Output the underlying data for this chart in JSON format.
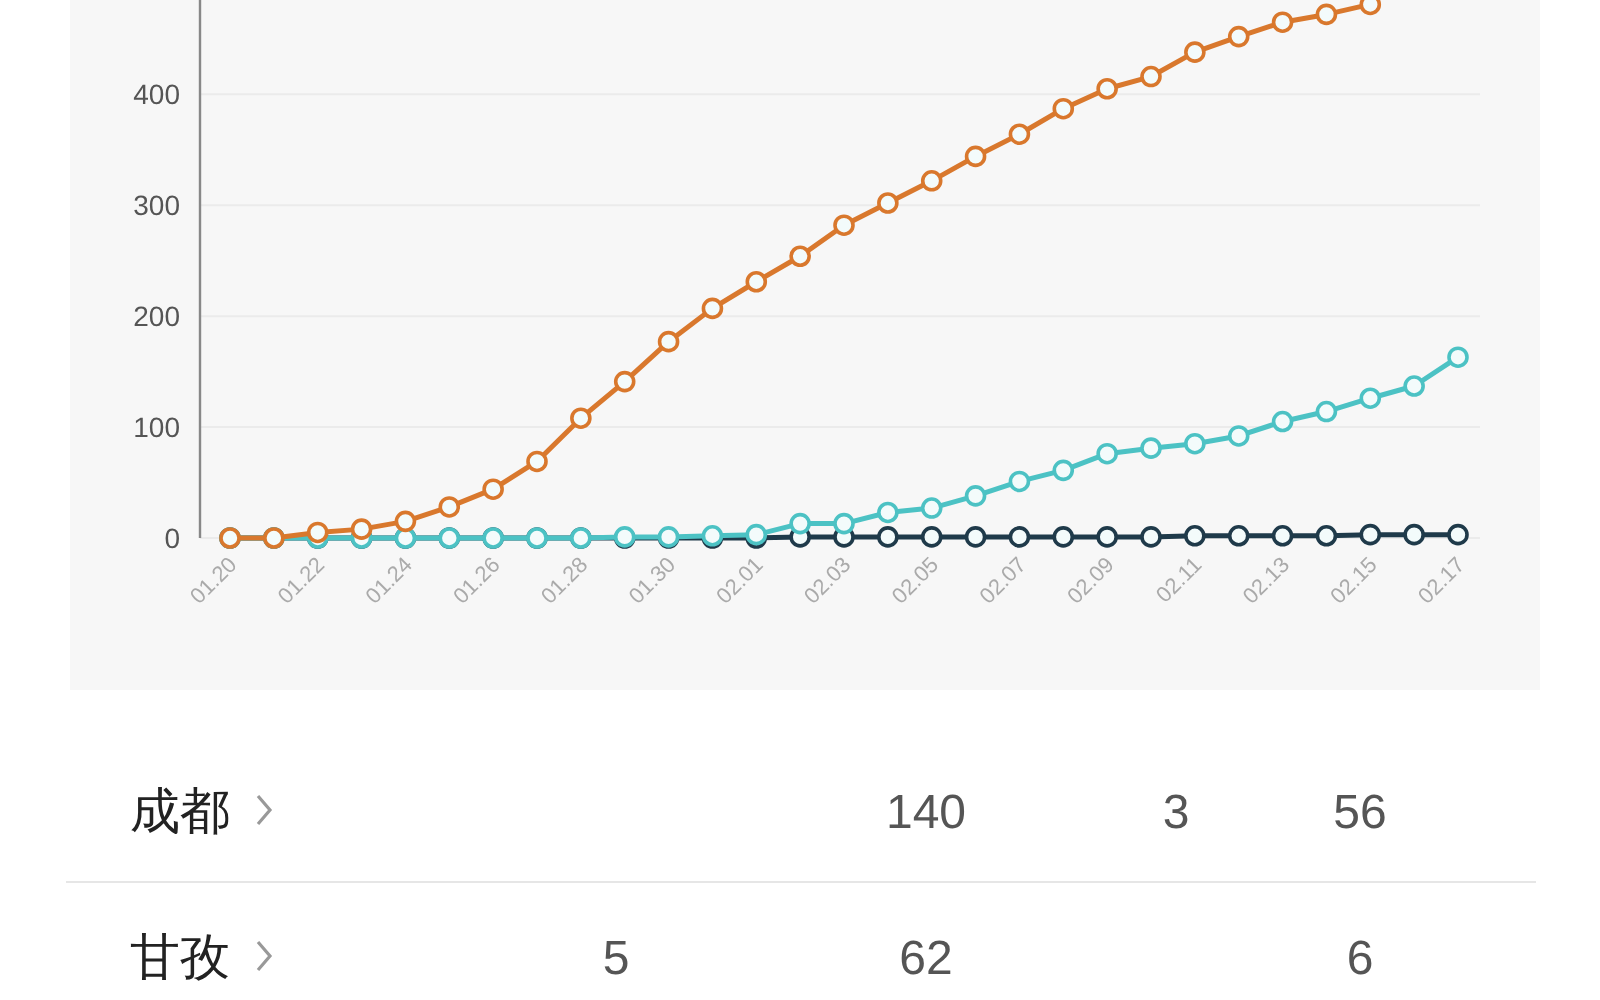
{
  "chart_data": {
    "type": "line",
    "categories": [
      "01.20",
      null,
      "01.22",
      null,
      "01.24",
      null,
      "01.26",
      null,
      "01.28",
      null,
      "01.30",
      null,
      "02.01",
      null,
      "02.03",
      null,
      "02.05",
      null,
      "02.07",
      null,
      "02.09",
      null,
      "02.11",
      null,
      "02.13",
      null,
      "02.15",
      null,
      "02.17"
    ],
    "series": [
      {
        "color": "#d9782d",
        "values": [
          0,
          0,
          5,
          8,
          15,
          28,
          44,
          69,
          108,
          141,
          177,
          207,
          231,
          254,
          282,
          302,
          322,
          344,
          364,
          387,
          405,
          416,
          438,
          452,
          465,
          472,
          481,
          null,
          null
        ]
      },
      {
        "color": "#4cc2c4",
        "values": [
          0,
          0,
          0,
          0,
          0,
          0,
          0,
          0,
          0,
          1,
          1,
          2,
          3,
          13,
          13,
          23,
          27,
          38,
          51,
          61,
          76,
          81,
          85,
          92,
          105,
          114,
          126,
          137,
          163
        ]
      },
      {
        "color": "#1f3a4a",
        "values": [
          0,
          0,
          0,
          0,
          0,
          0,
          0,
          0,
          0,
          0,
          0,
          0,
          0,
          1,
          1,
          1,
          1,
          1,
          1,
          1,
          1,
          1,
          2,
          2,
          2,
          2,
          3,
          3,
          3
        ]
      }
    ],
    "ylim": [
      0,
      485
    ],
    "yticks": [
      0,
      100,
      200,
      300,
      400
    ],
    "grid": "y",
    "marker": "circle",
    "line_style": "solid",
    "annotations": [
      "成都",
      "140",
      "3",
      "56",
      "甘孜",
      "5",
      "62",
      "6"
    ]
  }
}
